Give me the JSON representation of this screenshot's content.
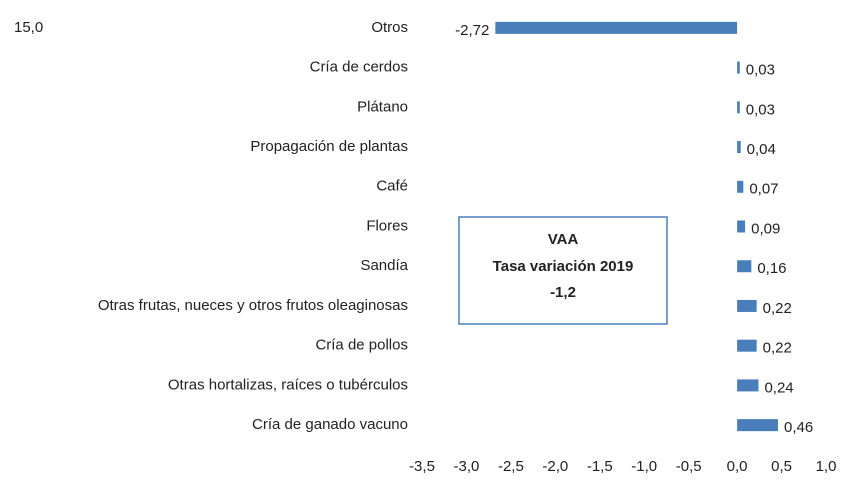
{
  "chart_data": {
    "type": "barh",
    "annotation": "15,0",
    "box_lines": [
      "VAA",
      "Tasa variación 2019",
      "-1,2"
    ],
    "categories": [
      "Otros",
      "Cría de cerdos",
      "Plátano",
      "Propagación de plantas",
      "Café",
      "Flores",
      "Sandía",
      "Otras frutas, nueces y otros frutos oleaginosas",
      "Cría de pollos",
      "Otras hortalizas, raíces o tubérculos",
      "Cría de ganado vacuno"
    ],
    "values": [
      -2.72,
      0.03,
      0.03,
      0.04,
      0.07,
      0.09,
      0.16,
      0.22,
      0.22,
      0.24,
      0.46
    ],
    "value_labels": [
      "-2,72",
      "0,03",
      "0,03",
      "0,04",
      "0,07",
      "0,09",
      "0,16",
      "0,22",
      "0,22",
      "0,24",
      "0,46"
    ],
    "color": "#4a7ebb",
    "xlim": [
      -3.5,
      1.0
    ],
    "xticks": [
      {
        "value": -3.5,
        "label": "-3,5"
      },
      {
        "value": -3.0,
        "label": "-3,0"
      },
      {
        "value": -2.5,
        "label": "-2,5"
      },
      {
        "value": -2.0,
        "label": "-2,0"
      },
      {
        "value": -1.5,
        "label": "-1,5"
      },
      {
        "value": -1.0,
        "label": "-1,0"
      },
      {
        "value": -0.5,
        "label": "-0,5"
      },
      {
        "value": 0.0,
        "label": "0,0"
      },
      {
        "value": 0.5,
        "label": "0,5"
      },
      {
        "value": 1.0,
        "label": "1,0"
      }
    ],
    "grid": false
  }
}
